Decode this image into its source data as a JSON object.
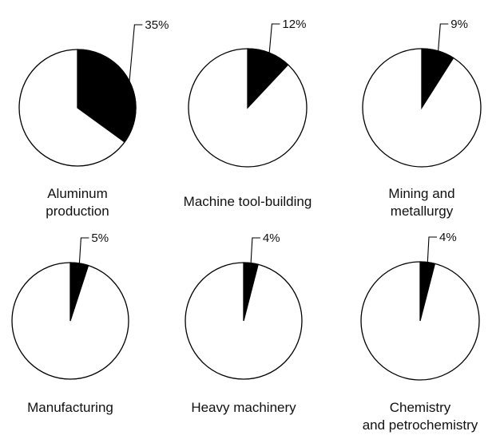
{
  "chart_data": [
    {
      "type": "pie",
      "value_pct": 35,
      "value_label": "35%",
      "label_lines": [
        "Aluminum",
        "production"
      ]
    },
    {
      "type": "pie",
      "value_pct": 12,
      "value_label": "12%",
      "label_lines": [
        "Machine tool-building"
      ]
    },
    {
      "type": "pie",
      "value_pct": 9,
      "value_label": "9%",
      "label_lines": [
        "Mining and",
        "metallurgy"
      ]
    },
    {
      "type": "pie",
      "value_pct": 5,
      "value_label": "5%",
      "label_lines": [
        "Manufacturing"
      ]
    },
    {
      "type": "pie",
      "value_pct": 4,
      "value_label": "4%",
      "label_lines": [
        "Heavy machinery"
      ]
    },
    {
      "type": "pie",
      "value_pct": 4,
      "value_label": "4%",
      "label_lines": [
        "Chemistry",
        "and petrochemistry"
      ]
    }
  ],
  "colors": {
    "highlight": "#000000",
    "remainder": "#ffffff",
    "outline": "#000000"
  }
}
